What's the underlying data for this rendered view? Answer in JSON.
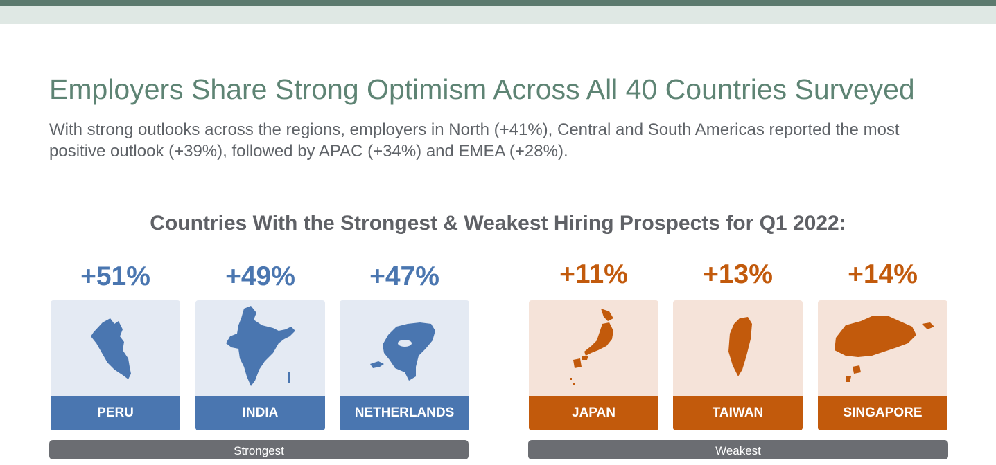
{
  "header": {
    "title": "Employers Share Strong Optimism Across All 40 Countries Surveyed",
    "subtitle": "With strong outlooks across the regions, employers in North (+41%), Central and South Americas reported the most positive outlook (+39%), followed by APAC (+34%) and EMEA (+28%)."
  },
  "section": {
    "title": "Countries With the Strongest & Weakest Hiring Prospects for Q1 2022:"
  },
  "strongest": {
    "label": "Strongest",
    "countries": [
      {
        "name": "PERU",
        "value": "+51%",
        "icon": "peru-map-icon"
      },
      {
        "name": "INDIA",
        "value": "+49%",
        "icon": "india-map-icon"
      },
      {
        "name": "NETHERLANDS",
        "value": "+47%",
        "icon": "netherlands-map-icon"
      }
    ]
  },
  "weakest": {
    "label": "Weakest",
    "countries": [
      {
        "name": "JAPAN",
        "value": "+11%",
        "icon": "japan-map-icon"
      },
      {
        "name": "TAIWAN",
        "value": "+13%",
        "icon": "taiwan-map-icon"
      },
      {
        "name": "SINGAPORE",
        "value": "+14%",
        "icon": "singapore-map-icon"
      }
    ]
  },
  "colors": {
    "strong": "#4a76b0",
    "weak": "#c25a0c",
    "title": "#5e8474"
  }
}
